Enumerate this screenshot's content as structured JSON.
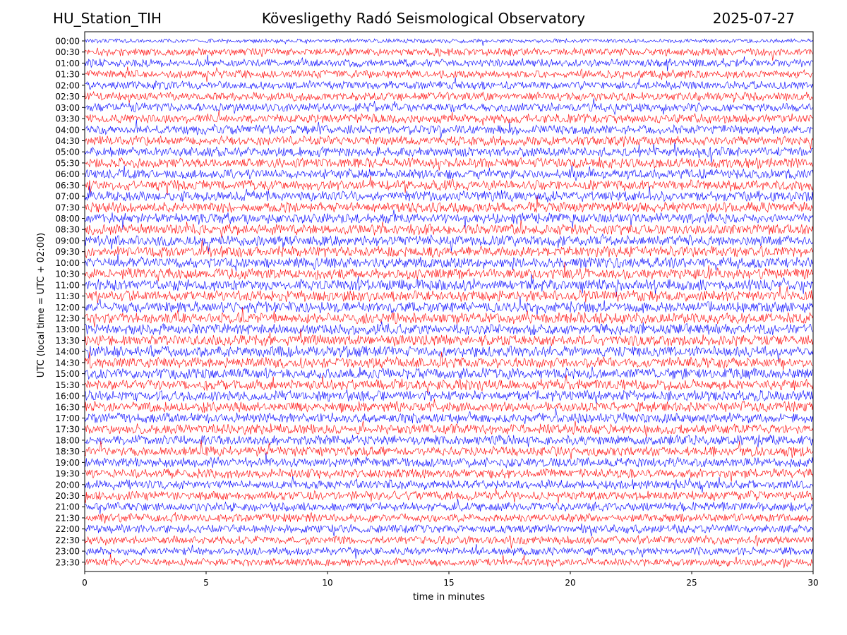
{
  "header": {
    "station": "HU_Station_TIH",
    "observatory": "Kövesligethy Radó Seismological Observatory",
    "date": "2025-07-27"
  },
  "chart_data": {
    "type": "line",
    "title": "Kövesligethy Radó Seismological Observatory",
    "xlabel": "time in minutes",
    "ylabel": "UTC (local time = UTC + 02:00)",
    "xlim": [
      0,
      30
    ],
    "x_ticks": [
      0,
      5,
      10,
      15,
      20,
      25,
      30
    ],
    "y_ticks": [
      "00:00",
      "00:30",
      "01:00",
      "01:30",
      "02:00",
      "02:30",
      "03:00",
      "03:30",
      "04:00",
      "04:30",
      "05:00",
      "05:30",
      "06:00",
      "06:30",
      "07:00",
      "07:30",
      "08:00",
      "08:30",
      "09:00",
      "09:30",
      "10:00",
      "10:30",
      "11:00",
      "11:30",
      "12:00",
      "12:30",
      "13:00",
      "13:30",
      "14:00",
      "14:30",
      "15:00",
      "15:30",
      "16:00",
      "16:30",
      "17:00",
      "17:30",
      "18:00",
      "18:30",
      "19:00",
      "19:30",
      "20:00",
      "20:30",
      "21:00",
      "21:30",
      "22:00",
      "22:30",
      "23:00",
      "23:30"
    ],
    "trace_colors": [
      "#0000ff",
      "#ff0000"
    ],
    "grid": false,
    "legend": false
  }
}
